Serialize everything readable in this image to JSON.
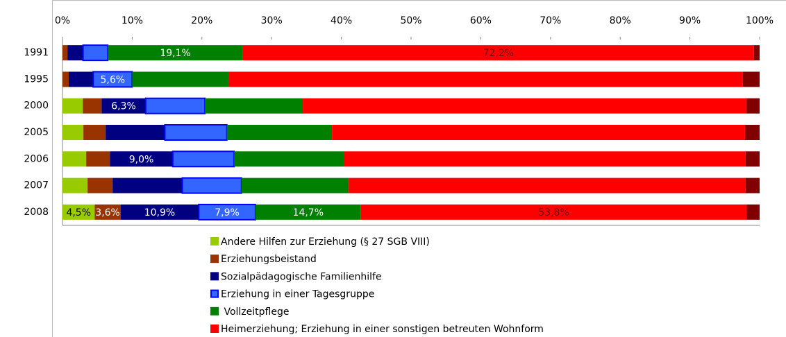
{
  "chart_data": {
    "type": "stacked_bar_horizontal",
    "categories": [
      "1991",
      "1995",
      "2000",
      "2005",
      "2006",
      "2007",
      "2008"
    ],
    "xlim": [
      0,
      100
    ],
    "xticks": [
      {
        "value": 0,
        "label": "0%"
      },
      {
        "value": 10,
        "label": "10%"
      },
      {
        "value": 20,
        "label": "20%"
      },
      {
        "value": 30,
        "label": "30%"
      },
      {
        "value": 40,
        "label": "40%"
      },
      {
        "value": 50,
        "label": "50%"
      },
      {
        "value": 60,
        "label": "60%"
      },
      {
        "value": 70,
        "label": "70%"
      },
      {
        "value": 80,
        "label": "80%"
      },
      {
        "value": 90,
        "label": "90%"
      },
      {
        "value": 100,
        "label": "100%"
      }
    ],
    "series": [
      {
        "name": "Andere Hilfen zur Erziehung (§ 27 SGB VIII)",
        "color": "#99cc00",
        "values": [
          0,
          0,
          2.9,
          3.0,
          3.4,
          3.6,
          4.5
        ],
        "value_labels": [
          null,
          null,
          null,
          null,
          null,
          null,
          "4,5%"
        ]
      },
      {
        "name": "Erziehungsbeistand",
        "color": "#993300",
        "values": [
          0.7,
          0.9,
          2.7,
          3.2,
          3.4,
          3.6,
          3.6
        ],
        "value_labels": [
          null,
          null,
          null,
          null,
          null,
          null,
          "3,6%"
        ]
      },
      {
        "name": "Sozialpädagogische Familienhilfe",
        "color": "#000080",
        "values": [
          2.2,
          3.5,
          6.3,
          8.5,
          9.0,
          10.0,
          10.9
        ],
        "value_labels": [
          null,
          null,
          "6,3%",
          null,
          "9,0%",
          null,
          "10,9%"
        ]
      },
      {
        "name": "Erziehung in einer Tagesgruppe",
        "color": "#3366ff",
        "values": [
          3.5,
          5.6,
          8.5,
          8.9,
          8.8,
          8.5,
          7.9
        ],
        "value_labels": [
          null,
          "5,6%",
          null,
          null,
          null,
          null,
          "7,9%"
        ]
      },
      {
        "name": " Vollzeitpflege",
        "color": "#008000",
        "values": [
          19.1,
          13.8,
          14.0,
          15.1,
          15.7,
          15.4,
          14.7
        ],
        "value_labels": [
          "19,1%",
          null,
          null,
          null,
          null,
          null,
          "14,7%"
        ]
      },
      {
        "name": "Heimerziehung; Erziehung in einer sonstigen betreuten Wohnform",
        "color": "#ff0000",
        "values": [
          72.2,
          73.8,
          63.5,
          59.3,
          57.6,
          57.0,
          53.8
        ],
        "value_labels": [
          "72,2%",
          null,
          null,
          null,
          null,
          null,
          "53,8%"
        ]
      },
      {
        "color": "#800000",
        "values": [
          0.8,
          2.4,
          1.9,
          2.1,
          2.0,
          2.0,
          1.8
        ]
      }
    ]
  }
}
